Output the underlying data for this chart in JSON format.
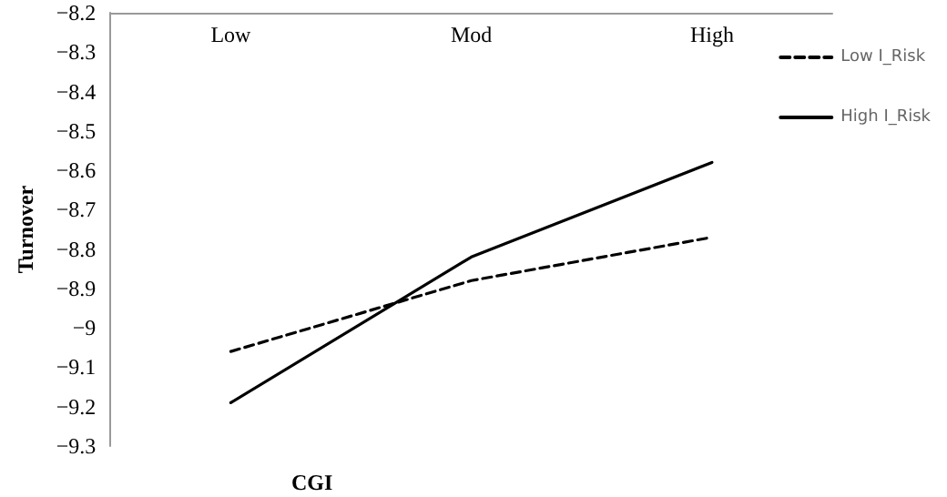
{
  "chart_data": {
    "type": "line",
    "xlabel": "CGI",
    "ylabel": "Turnover",
    "categories": [
      "Low",
      "Mod",
      "High"
    ],
    "series": [
      {
        "name": "Low I_Risk",
        "color": "#000000",
        "values": [
          -9.06,
          -8.88,
          -8.77
        ],
        "line_style": "dashed"
      },
      {
        "name": "High I_Risk",
        "color": "#000000",
        "values": [
          -9.19,
          -8.82,
          -8.58
        ],
        "line_style": "solid"
      }
    ],
    "ylim": [
      -9.3,
      -8.2
    ],
    "yticks": [
      -9.3,
      -9.2,
      -9.1,
      -9,
      -8.9,
      -8.8,
      -8.7,
      -8.6,
      -8.5,
      -8.4,
      -8.3,
      -8.2
    ],
    "grid": false,
    "legend": "right",
    "marker": "none"
  }
}
